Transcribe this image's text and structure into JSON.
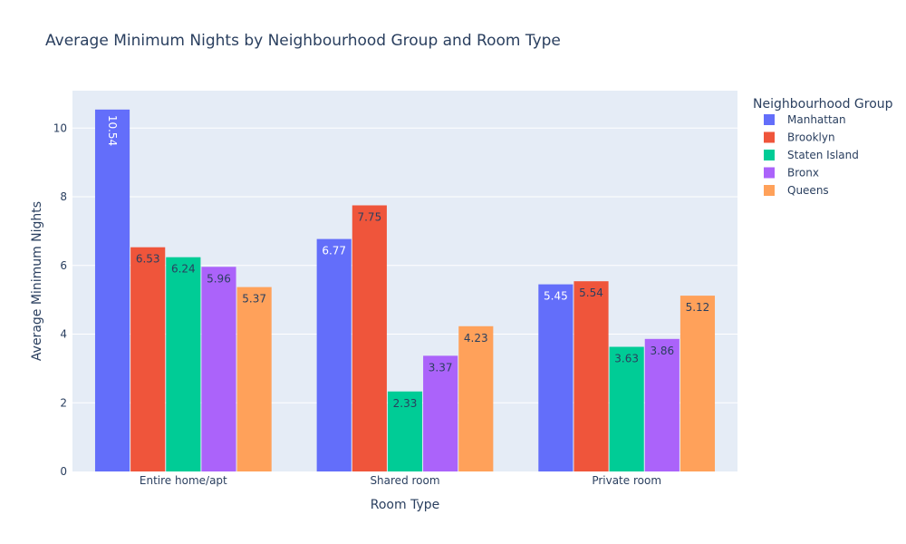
{
  "chart_data": {
    "type": "bar",
    "title": "Average Minimum Nights by Neighbourhood Group and Room Type",
    "xlabel": "Room Type",
    "ylabel": "Average Minimum Nights",
    "categories": [
      "Entire home/apt",
      "Shared room",
      "Private room"
    ],
    "series": [
      {
        "name": "Manhattan",
        "values": [
          10.54,
          6.77,
          5.45
        ],
        "labels": [
          "10.54",
          "6.77",
          "5.45"
        ],
        "color": "#636efa"
      },
      {
        "name": "Brooklyn",
        "values": [
          6.53,
          7.75,
          5.54
        ],
        "labels": [
          "6.53",
          "7.75",
          "5.54"
        ],
        "color": "#ef553b"
      },
      {
        "name": "Staten Island",
        "values": [
          6.24,
          2.33,
          3.63
        ],
        "labels": [
          "6.24",
          "2.33",
          "3.63"
        ],
        "color": "#00cc96"
      },
      {
        "name": "Bronx",
        "values": [
          5.96,
          3.37,
          3.86
        ],
        "labels": [
          "5.96",
          "3.37",
          "3.86"
        ],
        "color": "#ab63fa"
      },
      {
        "name": "Queens",
        "values": [
          5.37,
          4.23,
          5.12
        ],
        "labels": [
          "5.37",
          "4.23",
          "5.12"
        ],
        "color": "#ffa15a"
      }
    ],
    "yticks": [
      "0",
      "2",
      "4",
      "6",
      "8",
      "10"
    ],
    "ylim": [
      0,
      11.09
    ],
    "legend_title": "Neighbourhood Group",
    "legend_position": "top-right",
    "grid": true,
    "plot_background": "#e5ecf6"
  }
}
